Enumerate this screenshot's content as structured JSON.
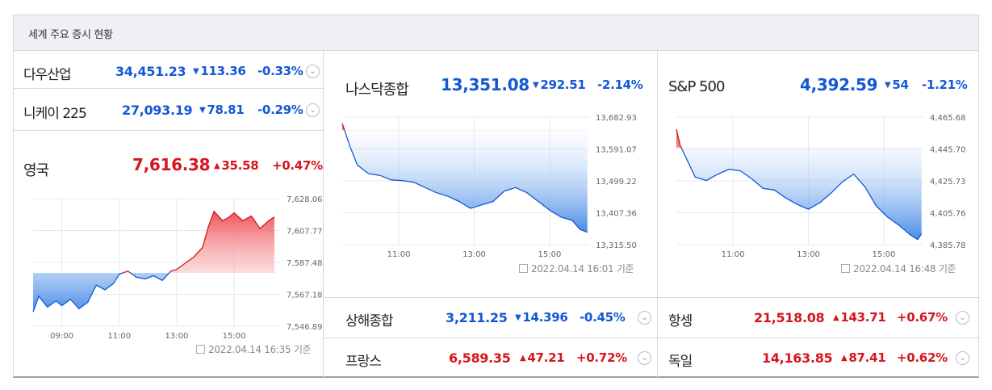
{
  "title": "세계 주요 증시 현황",
  "rows_left": [
    {
      "name": "다우산업",
      "value": "34,451.23",
      "change": "113.36",
      "percent": "-0.33%",
      "dir": "down"
    },
    {
      "name": "니케이 225",
      "value": "27,093.19",
      "change": "78.81",
      "percent": "-0.29%",
      "dir": "down"
    }
  ],
  "uk": {
    "name": "영국",
    "value": "7,616.38",
    "change": "35.58",
    "percent": "+0.47%",
    "dir": "up",
    "timestamp": "2022.04.14 16:35 기준"
  },
  "nasdaq": {
    "name": "나스닥종합",
    "value": "13,351.08",
    "change": "292.51",
    "percent": "-2.14%",
    "dir": "down",
    "timestamp": "2022.04.14 16:01 기준"
  },
  "sp500": {
    "name": "S&P 500",
    "value": "4,392.59",
    "change": "54",
    "percent": "-1.21%",
    "dir": "down",
    "timestamp": "2022.04.14 16:48 기준"
  },
  "rows_bottom": [
    {
      "name": "상해종합",
      "value": "3,211.25",
      "change": "14.396",
      "percent": "-0.45%",
      "dir": "down"
    },
    {
      "name": "항셍",
      "value": "21,518.08",
      "change": "143.71",
      "percent": "+0.67%",
      "dir": "up"
    },
    {
      "name": "프랑스",
      "value": "6,589.35",
      "change": "47.21",
      "percent": "+0.72%",
      "dir": "up"
    },
    {
      "name": "독일",
      "value": "14,163.85",
      "change": "87.41",
      "percent": "+0.62%",
      "dir": "up"
    }
  ],
  "icons": {
    "arrow_down": "▼",
    "arrow_up": "▲",
    "expand": "⌄"
  },
  "colors": {
    "up": "#d6161d",
    "down": "#1458d6"
  },
  "chart_data": [
    {
      "type": "area",
      "name": "영국",
      "x_ticks": [
        "09:00",
        "11:00",
        "13:00",
        "15:00"
      ],
      "y_ticks": [
        "7,628.06",
        "7,607.77",
        "7,587.48",
        "7,567.18",
        "7,546.89"
      ],
      "ylim": [
        7546.89,
        7628.06
      ],
      "baseline": 7580.8,
      "x": [
        8.0,
        8.2,
        8.5,
        8.8,
        9.0,
        9.3,
        9.6,
        9.9,
        10.2,
        10.5,
        10.8,
        11.0,
        11.3,
        11.6,
        11.9,
        12.2,
        12.5,
        12.8,
        13.0,
        13.3,
        13.6,
        13.9,
        14.1,
        14.3,
        14.6,
        14.8,
        15.0,
        15.3,
        15.6,
        15.9,
        16.2,
        16.4
      ],
      "y": [
        7556,
        7566,
        7559,
        7563,
        7560,
        7564,
        7558,
        7562,
        7573,
        7570,
        7574,
        7580,
        7582,
        7578,
        7577,
        7579,
        7576,
        7582,
        7583,
        7587,
        7591,
        7597,
        7610,
        7620,
        7614,
        7616,
        7619,
        7614,
        7617,
        7609,
        7614,
        7616.38
      ]
    },
    {
      "type": "area",
      "name": "나스닥종합",
      "x_ticks": [
        "11:00",
        "13:00",
        "15:00"
      ],
      "y_ticks": [
        "13,682.93",
        "13,591.07",
        "13,499.22",
        "13,407.36",
        "13,315.50"
      ],
      "ylim": [
        13315.5,
        13682.93
      ],
      "baseline": 13645,
      "x": [
        9.5,
        9.7,
        9.9,
        10.2,
        10.5,
        10.8,
        11.1,
        11.4,
        11.7,
        12.0,
        12.3,
        12.6,
        12.9,
        13.2,
        13.5,
        13.8,
        14.1,
        14.4,
        14.7,
        15.0,
        15.3,
        15.6,
        15.8,
        16.0
      ],
      "y": [
        13665,
        13600,
        13545,
        13520,
        13515,
        13502,
        13500,
        13495,
        13480,
        13465,
        13455,
        13440,
        13420,
        13430,
        13440,
        13470,
        13480,
        13465,
        13440,
        13415,
        13395,
        13385,
        13360,
        13351.08
      ]
    },
    {
      "type": "area",
      "name": "S&P 500",
      "x_ticks": [
        "11:00",
        "13:00",
        "15:00"
      ],
      "y_ticks": [
        "4,465.68",
        "4,445.70",
        "4,425.73",
        "4,405.76",
        "4,385.78"
      ],
      "ylim": [
        4385.78,
        4465.68
      ],
      "baseline": 4446.5,
      "x": [
        9.5,
        9.6,
        9.8,
        10.0,
        10.3,
        10.6,
        10.9,
        11.2,
        11.5,
        11.8,
        12.1,
        12.4,
        12.7,
        13.0,
        13.3,
        13.6,
        13.9,
        14.2,
        14.5,
        14.8,
        15.1,
        15.4,
        15.7,
        15.9,
        16.0
      ],
      "y": [
        4458,
        4448,
        4438,
        4428,
        4426,
        4430,
        4433,
        4432,
        4427,
        4421,
        4420,
        4415,
        4411,
        4408,
        4412,
        4418,
        4425,
        4430,
        4422,
        4410,
        4403,
        4398,
        4392,
        4389,
        4392.59
      ]
    }
  ]
}
